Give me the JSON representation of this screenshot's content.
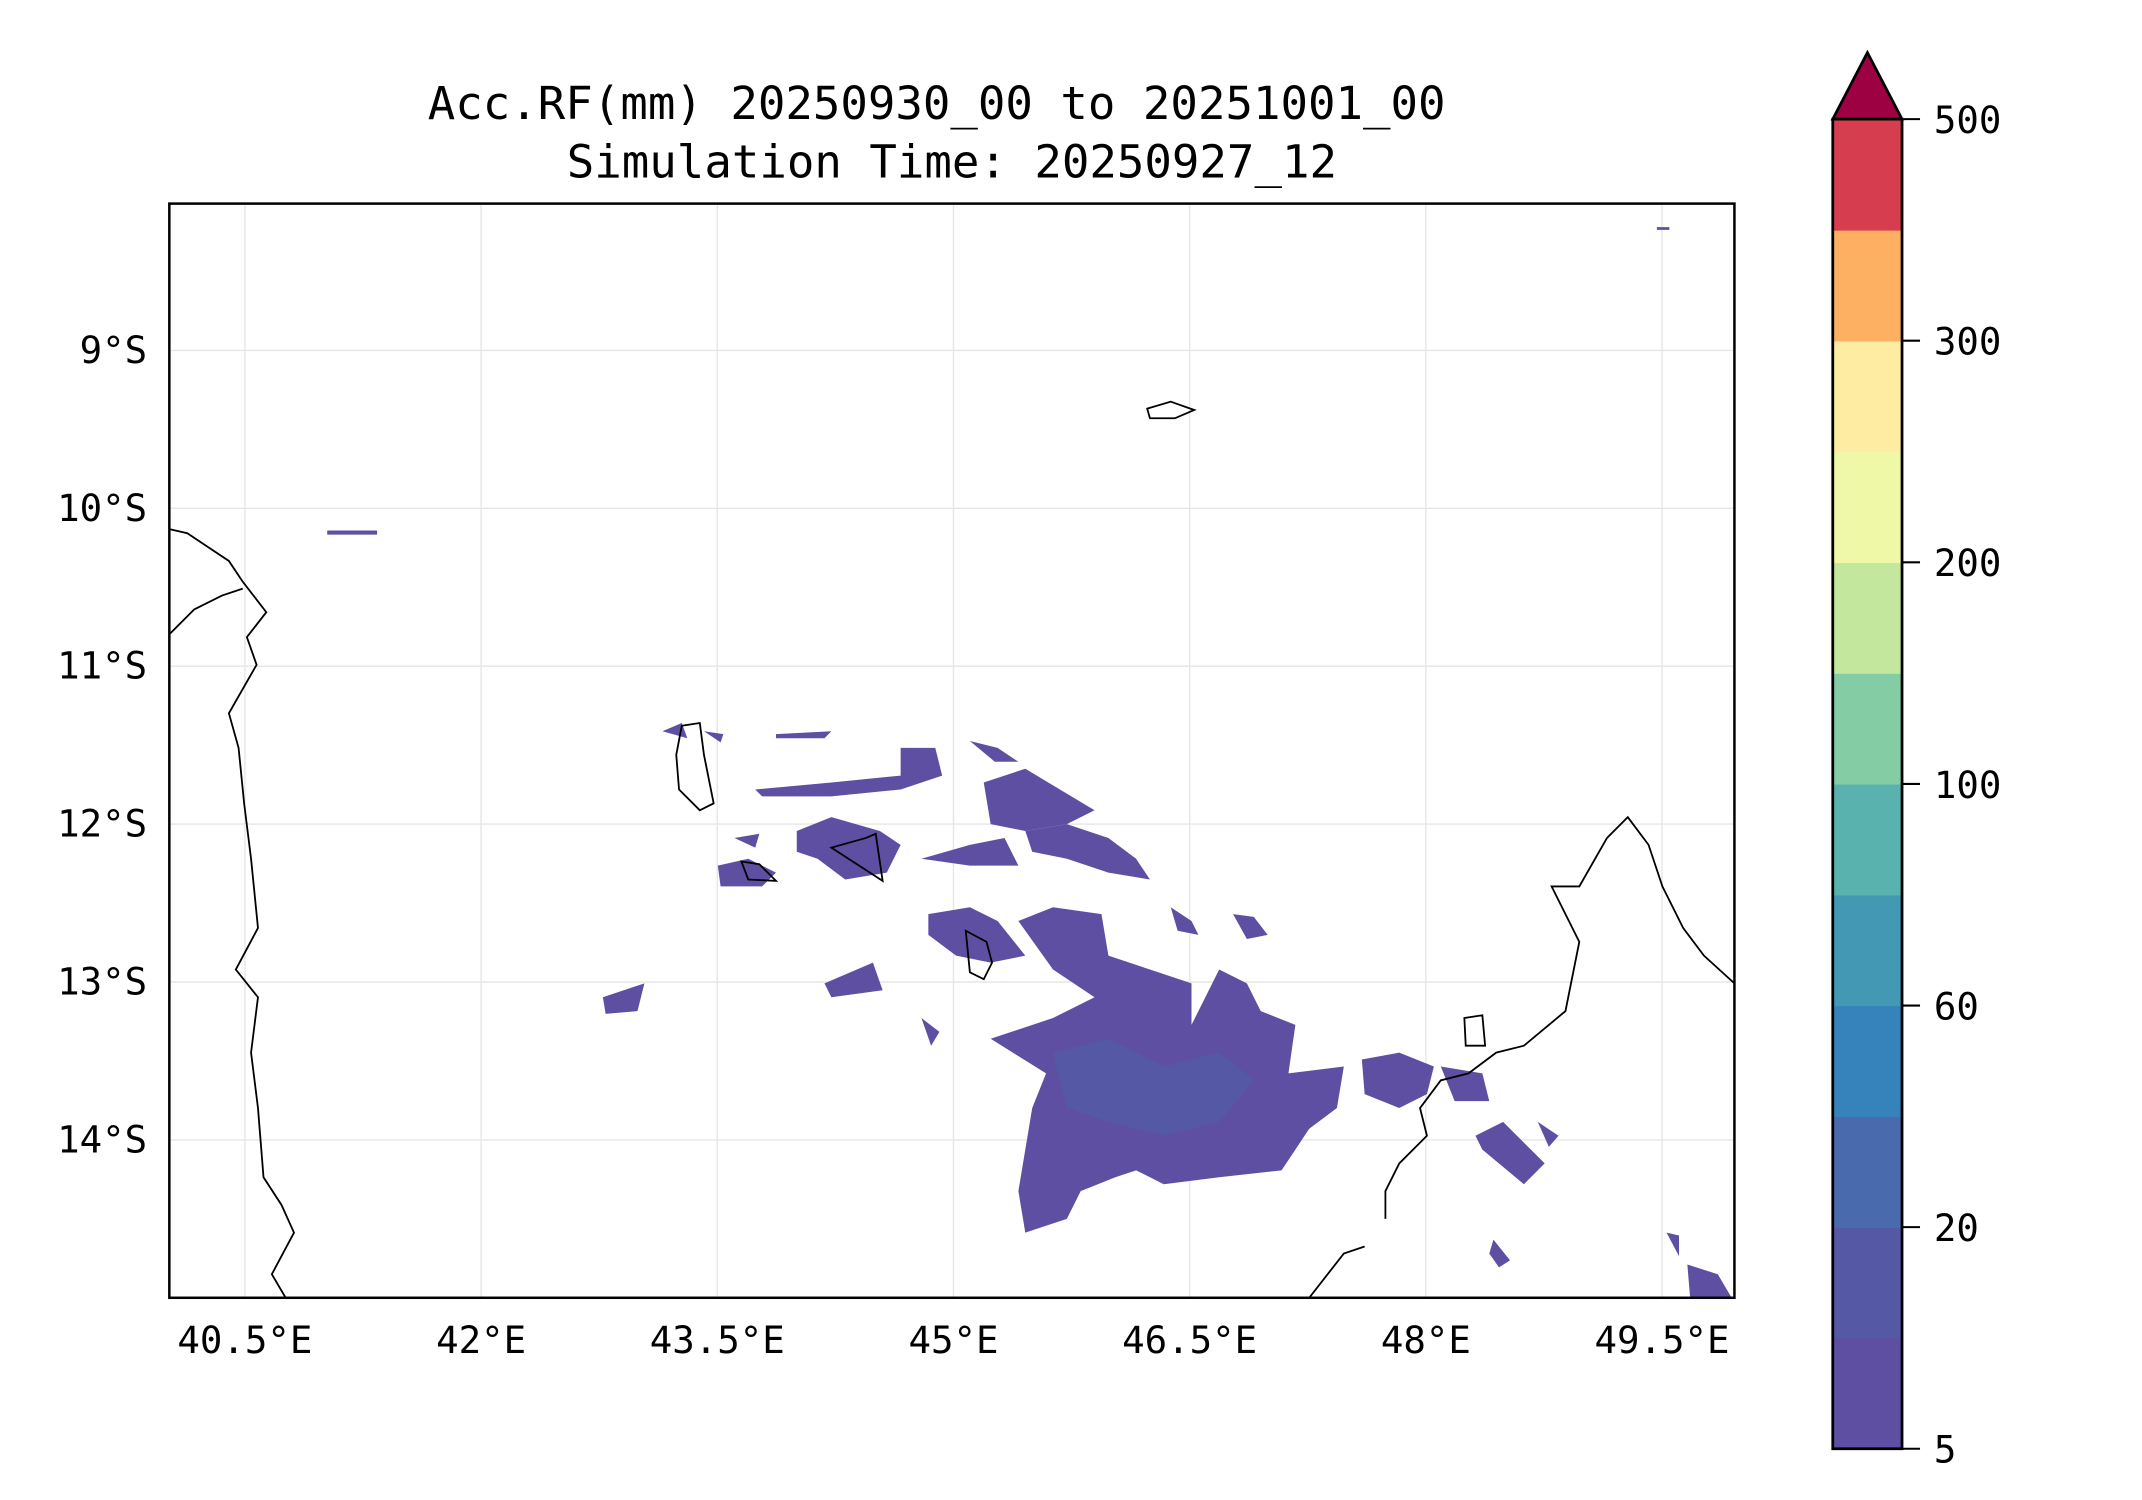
{
  "chart_data": {
    "type": "heatmap",
    "title": "Acc.RF(mm) 20250930_00 to 20251001_00",
    "subtitle": "Simulation Time: 20250927_12",
    "xlabel": "",
    "ylabel": "",
    "xlim": [
      40.02,
      49.96
    ],
    "ylim": [
      -15.0,
      -8.07
    ],
    "x_ticks": [
      40.5,
      42,
      43.5,
      45,
      46.5,
      48,
      49.5
    ],
    "x_tick_labels": [
      "40.5°E",
      "42°E",
      "43.5°E",
      "45°E",
      "46.5°E",
      "48°E",
      "49.5°E"
    ],
    "y_ticks": [
      -9,
      -10,
      -11,
      -12,
      -13,
      -14
    ],
    "y_tick_labels": [
      "9°S",
      "10°S",
      "11°S",
      "12°S",
      "13°S",
      "14°S"
    ],
    "grid": true,
    "colorbar": {
      "tick_labels": [
        "5",
        "20",
        "60",
        "100",
        "200",
        "300",
        "500"
      ],
      "extend": "max",
      "colors": [
        "#5e4fa2",
        "#5558a5",
        "#4a6aae",
        "#3682ba",
        "#4398b4",
        "#59b2ad",
        "#83cca4",
        "#c4e79e",
        "#eff8a6",
        "#feeca2",
        "#fdaf62",
        "#d63e50"
      ],
      "over_color": "#9e0142"
    },
    "rain_color": "#5e4fa2",
    "rain_core_color": "#5558a5"
  }
}
